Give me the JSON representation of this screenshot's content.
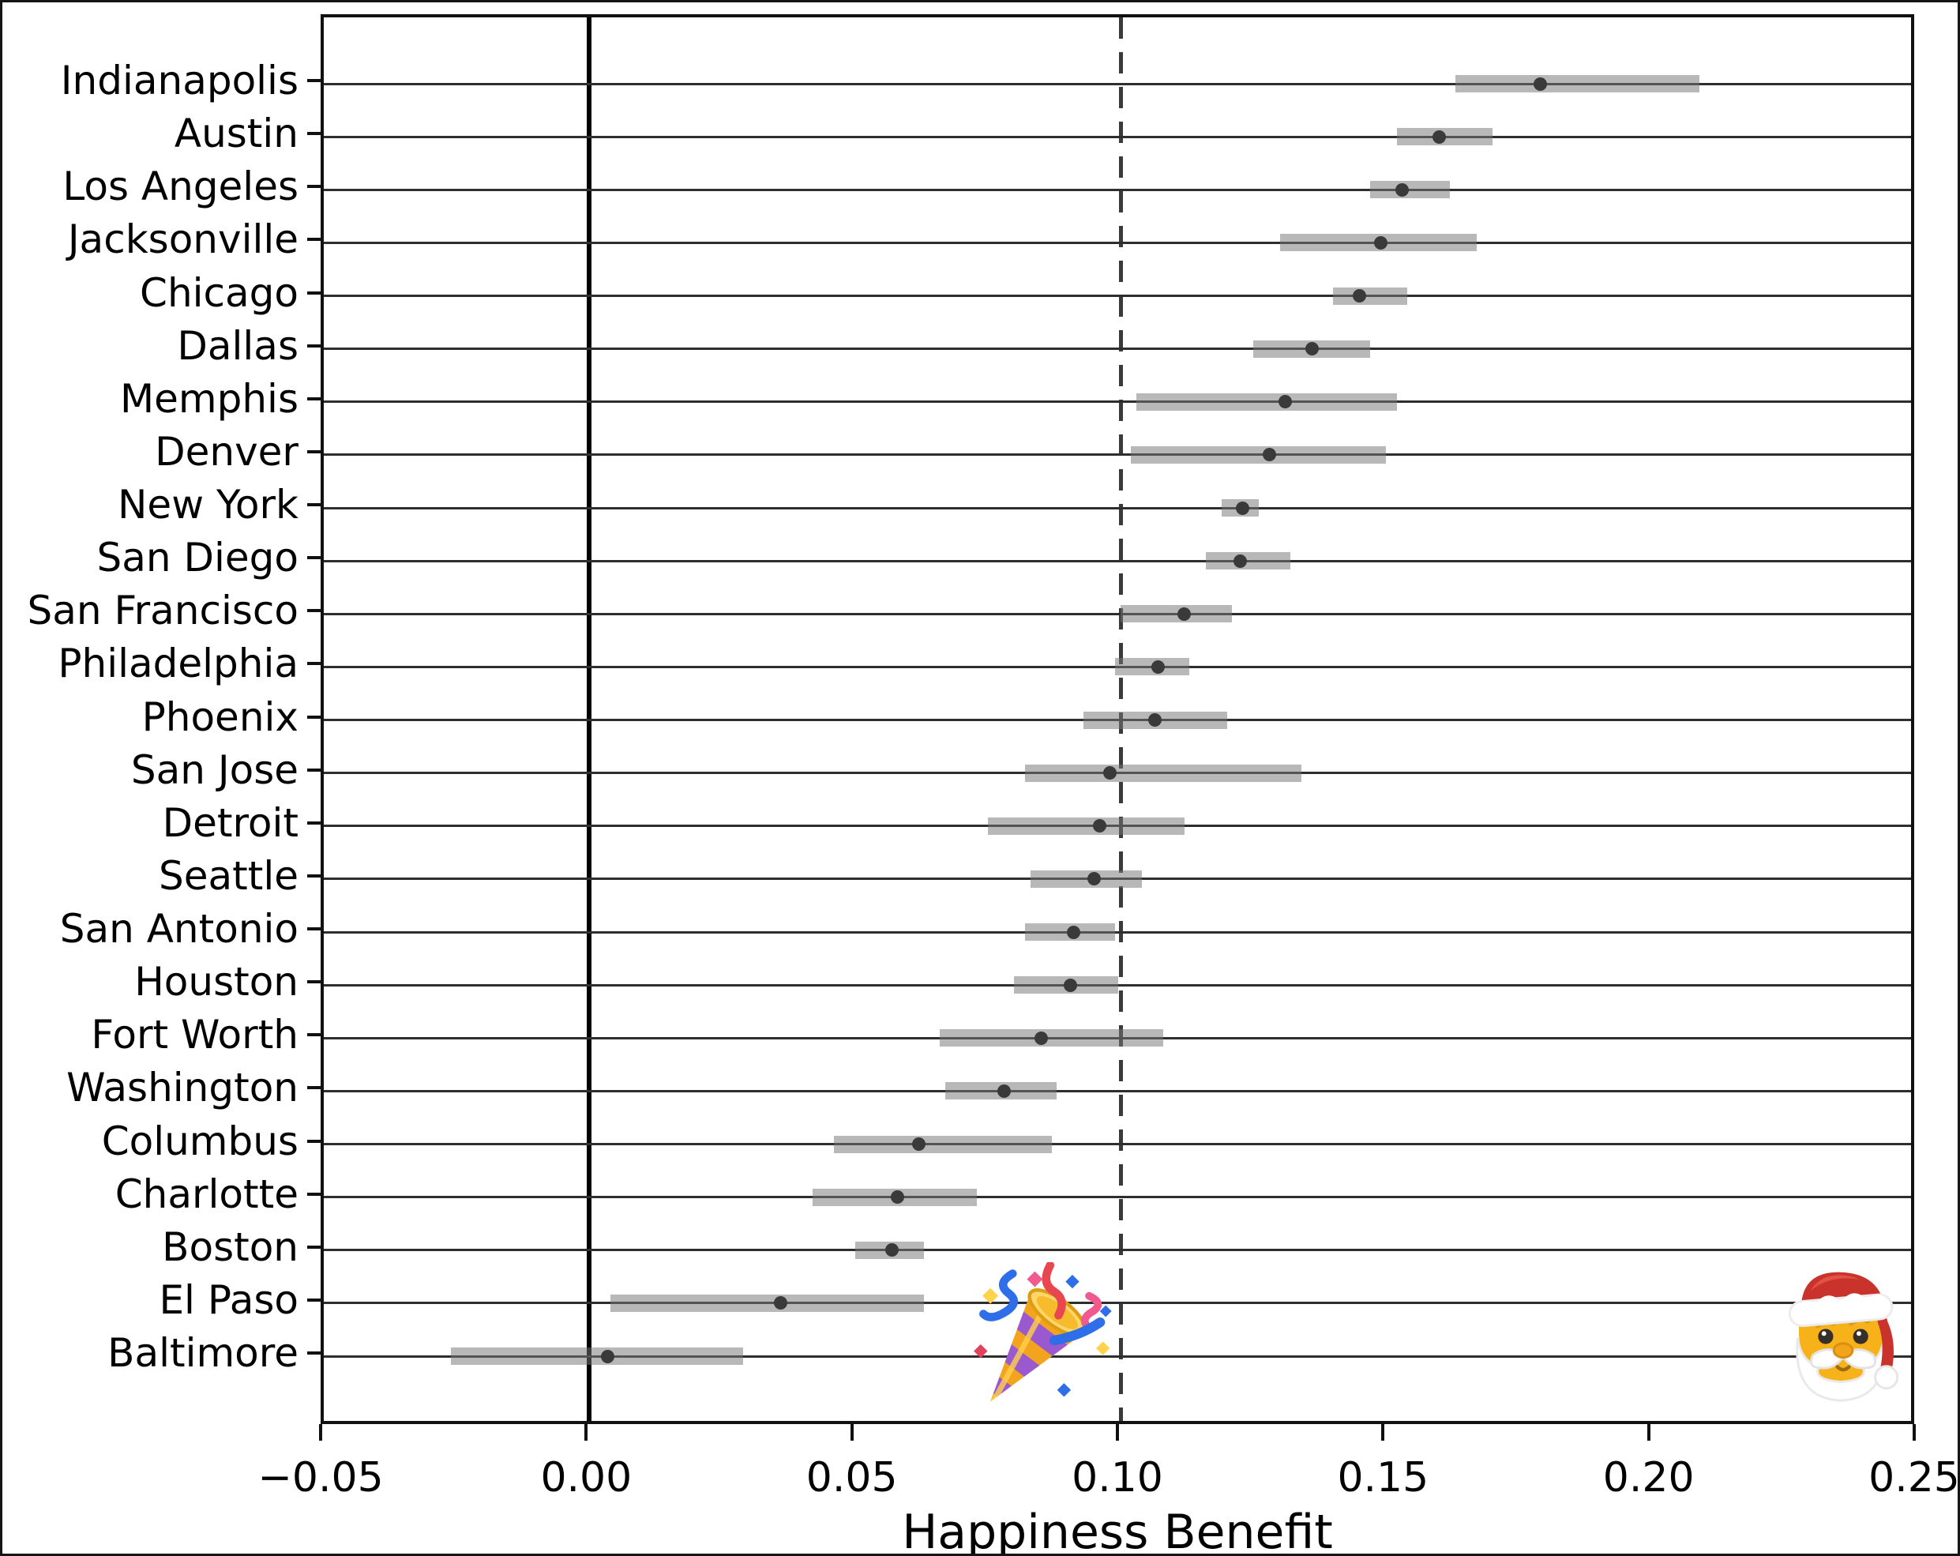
{
  "figure": {
    "background": "#ffffff",
    "border_color": "#151515"
  },
  "chart_data": {
    "type": "scatter",
    "subtype": "horizontal-dot-plot-with-error-bars",
    "title": "",
    "xlabel": "Happiness Benefit",
    "ylabel": "",
    "xlim": [
      -0.05,
      0.25
    ],
    "x_ticks": [
      -0.05,
      0.0,
      0.05,
      0.1,
      0.15,
      0.2,
      0.25
    ],
    "x_tick_labels": [
      "−0.05",
      "0.00",
      "0.05",
      "0.10",
      "0.15",
      "0.20",
      "0.25"
    ],
    "grid": "horizontal-line-per-category",
    "legend": "none",
    "colors": {
      "grid_line": "#2e2e2e",
      "ci_bar": "rgba(118,118,118,0.52)",
      "point": "#3a3a3a",
      "zero_line": "#000000",
      "dashed_reference_line": "#3a3a3a"
    },
    "reference_lines": [
      {
        "x": 0.0,
        "style": "solid"
      },
      {
        "x": 0.1,
        "style": "dashed"
      }
    ],
    "categories": [
      "Indianapolis",
      "Austin",
      "Los Angeles",
      "Jacksonville",
      "Chicago",
      "Dallas",
      "Memphis",
      "Denver",
      "New York",
      "San Diego",
      "San Francisco",
      "Philadelphia",
      "Phoenix",
      "San Jose",
      "Detroit",
      "Seattle",
      "San Antonio",
      "Houston",
      "Fort Worth",
      "Washington",
      "Columbus",
      "Charlotte",
      "Boston",
      "El Paso",
      "Baltimore"
    ],
    "series": [
      {
        "label": "Indianapolis",
        "value": 0.179,
        "ci_low": 0.163,
        "ci_high": 0.209
      },
      {
        "label": "Austin",
        "value": 0.16,
        "ci_low": 0.152,
        "ci_high": 0.17
      },
      {
        "label": "Los Angeles",
        "value": 0.153,
        "ci_low": 0.147,
        "ci_high": 0.162
      },
      {
        "label": "Jacksonville",
        "value": 0.149,
        "ci_low": 0.13,
        "ci_high": 0.167
      },
      {
        "label": "Chicago",
        "value": 0.145,
        "ci_low": 0.14,
        "ci_high": 0.154
      },
      {
        "label": "Dallas",
        "value": 0.136,
        "ci_low": 0.125,
        "ci_high": 0.147
      },
      {
        "label": "Memphis",
        "value": 0.131,
        "ci_low": 0.103,
        "ci_high": 0.152
      },
      {
        "label": "Denver",
        "value": 0.128,
        "ci_low": 0.102,
        "ci_high": 0.15
      },
      {
        "label": "New York",
        "value": 0.123,
        "ci_low": 0.119,
        "ci_high": 0.126
      },
      {
        "label": "San Diego",
        "value": 0.1225,
        "ci_low": 0.116,
        "ci_high": 0.132
      },
      {
        "label": "San Francisco",
        "value": 0.112,
        "ci_low": 0.1,
        "ci_high": 0.121
      },
      {
        "label": "Philadelphia",
        "value": 0.107,
        "ci_low": 0.099,
        "ci_high": 0.113
      },
      {
        "label": "Phoenix",
        "value": 0.1065,
        "ci_low": 0.093,
        "ci_high": 0.12
      },
      {
        "label": "San Jose",
        "value": 0.098,
        "ci_low": 0.082,
        "ci_high": 0.134
      },
      {
        "label": "Detroit",
        "value": 0.096,
        "ci_low": 0.075,
        "ci_high": 0.112
      },
      {
        "label": "Seattle",
        "value": 0.095,
        "ci_low": 0.083,
        "ci_high": 0.104
      },
      {
        "label": "San Antonio",
        "value": 0.0912,
        "ci_low": 0.082,
        "ci_high": 0.099
      },
      {
        "label": "Houston",
        "value": 0.0905,
        "ci_low": 0.08,
        "ci_high": 0.0995
      },
      {
        "label": "Fort Worth",
        "value": 0.085,
        "ci_low": 0.066,
        "ci_high": 0.108
      },
      {
        "label": "Washington",
        "value": 0.078,
        "ci_low": 0.067,
        "ci_high": 0.088
      },
      {
        "label": "Columbus",
        "value": 0.062,
        "ci_low": 0.046,
        "ci_high": 0.087
      },
      {
        "label": "Charlotte",
        "value": 0.058,
        "ci_low": 0.042,
        "ci_high": 0.073
      },
      {
        "label": "Boston",
        "value": 0.057,
        "ci_low": 0.05,
        "ci_high": 0.063
      },
      {
        "label": "El Paso",
        "value": 0.036,
        "ci_low": 0.004,
        "ci_high": 0.063
      },
      {
        "label": "Baltimore",
        "value": 0.0035,
        "ci_low": -0.026,
        "ci_high": 0.029
      }
    ],
    "annotations": [
      {
        "id": "party-popper",
        "x": 0.086,
        "row": 23.76
      },
      {
        "id": "santa-claus",
        "x": 0.237,
        "row": 23.73
      }
    ]
  }
}
